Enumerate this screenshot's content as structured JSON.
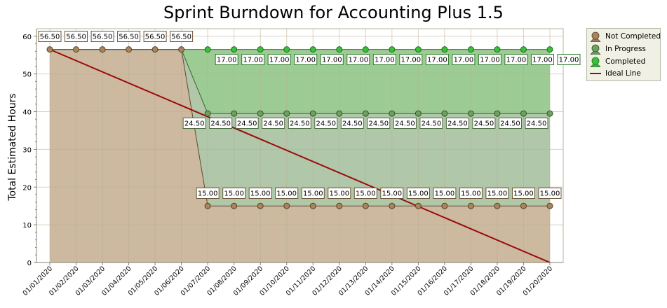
{
  "chart_data": {
    "type": "area",
    "title": "Sprint Burndown for Accounting Plus 1.5",
    "xlabel": "",
    "ylabel": "Total Estimated Hours",
    "ylim": [
      0,
      62
    ],
    "yticks": [
      "0",
      "10",
      "20",
      "30",
      "40",
      "50",
      "60"
    ],
    "grid": true,
    "legend_position": "right",
    "categories": [
      "01/01/2020",
      "01/02/2020",
      "01/03/2020",
      "01/04/2020",
      "01/05/2020",
      "01/06/2020",
      "01/07/2020",
      "01/08/2020",
      "01/09/2020",
      "01/10/2020",
      "01/11/2020",
      "01/12/2020",
      "01/13/2020",
      "01/14/2020",
      "01/15/2020",
      "01/16/2020",
      "01/17/2020",
      "01/18/2020",
      "01/19/2020",
      "01/20/2020"
    ],
    "series": [
      {
        "name": "Not Completed",
        "color": "#9c7b55",
        "values": [
          56.5,
          56.5,
          56.5,
          56.5,
          56.5,
          56.5,
          15,
          15,
          15,
          15,
          15,
          15,
          15,
          15,
          15,
          15,
          15,
          15,
          15,
          15
        ],
        "labels": [
          "56.50",
          "56.50",
          "56.50",
          "56.50",
          "56.50",
          "56.50",
          "15.00",
          "15.00",
          "15.00",
          "15.00",
          "15.00",
          "15.00",
          "15.00",
          "15.00",
          "15.00",
          "15.00",
          "15.00",
          "15.00",
          "15.00",
          "15.00"
        ]
      },
      {
        "name": "In Progress",
        "color": "#6a9a5c",
        "values": [
          0,
          0,
          0,
          0,
          0,
          0,
          24.5,
          24.5,
          24.5,
          24.5,
          24.5,
          24.5,
          24.5,
          24.5,
          24.5,
          24.5,
          24.5,
          24.5,
          24.5,
          24.5
        ],
        "labels": [
          "",
          "",
          "",
          "",
          "",
          "",
          "24.50",
          "24.50",
          "24.50",
          "24.50",
          "24.50",
          "24.50",
          "24.50",
          "24.50",
          "24.50",
          "24.50",
          "24.50",
          "24.50",
          "24.50",
          "24.50"
        ]
      },
      {
        "name": "Completed",
        "color": "#3cb33c",
        "values": [
          0,
          0,
          0,
          0,
          0,
          0,
          17,
          17,
          17,
          17,
          17,
          17,
          17,
          17,
          17,
          17,
          17,
          17,
          17,
          17
        ],
        "labels": [
          "",
          "",
          "",
          "",
          "",
          "",
          "17.00",
          "17.00",
          "17.00",
          "17.00",
          "17.00",
          "17.00",
          "17.00",
          "17.00",
          "17.00",
          "17.00",
          "17.00",
          "17.00",
          "17.00",
          "17.00"
        ]
      }
    ],
    "ideal_line": {
      "name": "Ideal Line",
      "color": "#9b0a0a",
      "start": 56.5,
      "end": 0
    }
  }
}
